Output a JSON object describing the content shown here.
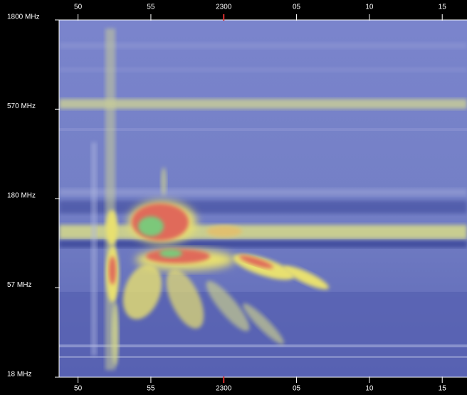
{
  "chart_data": {
    "type": "spectrogram",
    "xlim": [
      48.7,
      76.7
    ],
    "xticks": [
      50,
      55,
      {
        "value": 60,
        "label": "2300"
      },
      {
        "value": 65,
        "label": "05"
      },
      {
        "value": 70,
        "label": "10"
      },
      {
        "value": 75,
        "label": "15"
      }
    ],
    "ylim": [
      18,
      1800
    ],
    "log_y": true,
    "yticks": [
      {
        "value": 1800,
        "label": "1800 MHz"
      },
      {
        "value": 570,
        "label": "570 MHz"
      },
      {
        "value": 180,
        "label": "180 MHz"
      },
      {
        "value": 57,
        "label": "57  MHz"
      },
      {
        "value": 18,
        "label": "18  MHz"
      }
    ],
    "highlight_tick": 60,
    "highlight_color": "#e03030"
  }
}
